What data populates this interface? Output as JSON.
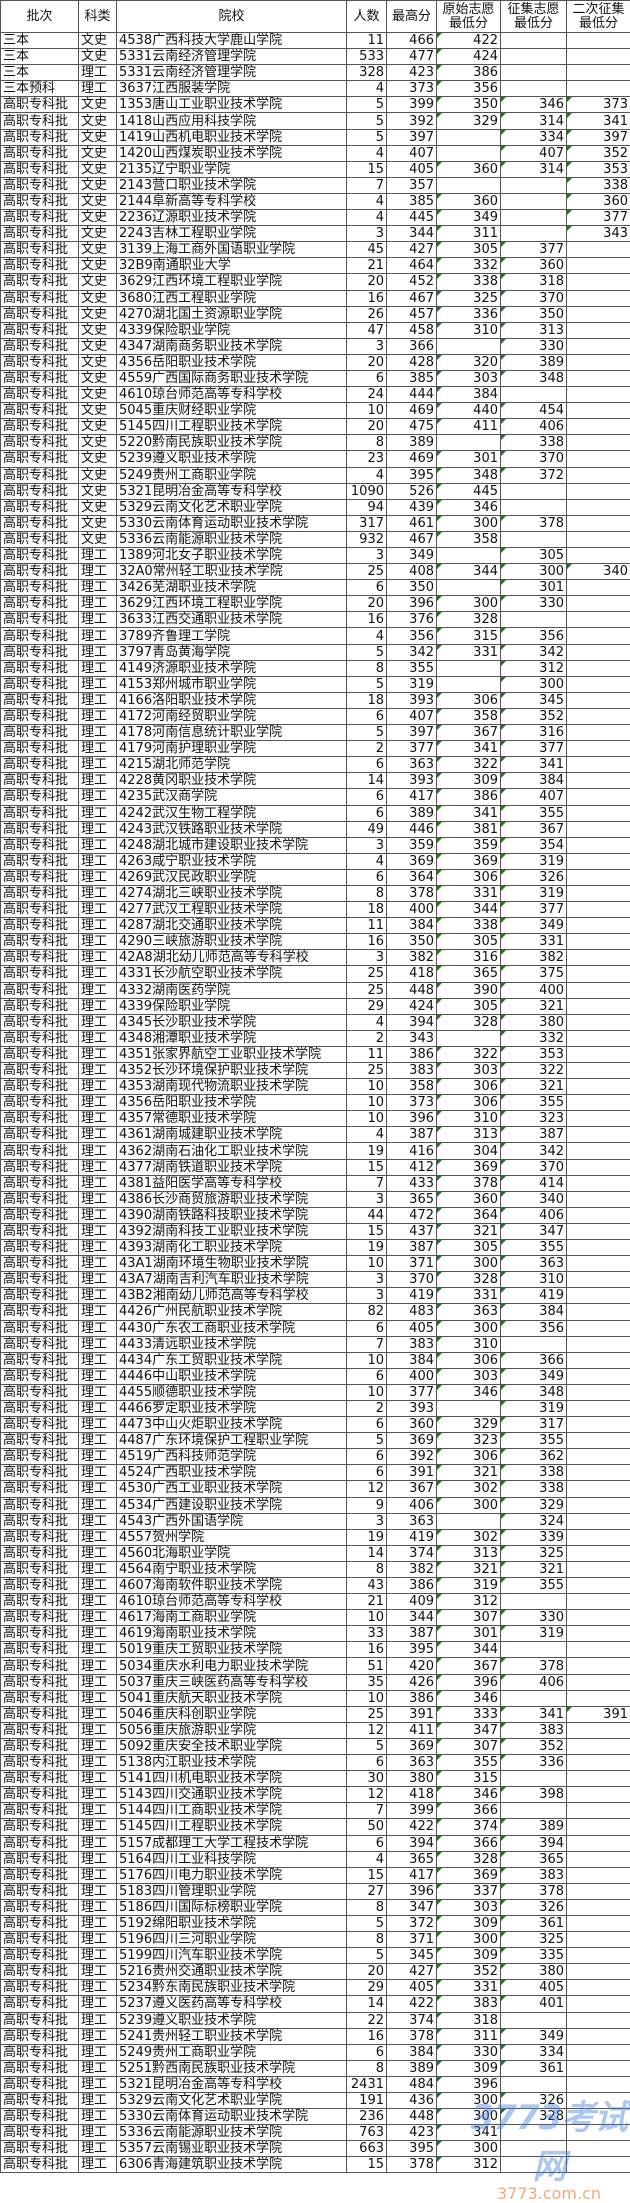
{
  "headers": [
    "批次",
    "科类",
    "院校",
    "人数",
    "最高分",
    "原始志愿\n最低分",
    "征集志愿\n最低分",
    "二次征集\n最低分"
  ],
  "header_lines": [
    [
      "批次"
    ],
    [
      "科类"
    ],
    [
      "院校"
    ],
    [
      "人数"
    ],
    [
      "最高分"
    ],
    [
      "原始志愿",
      "最低分"
    ],
    [
      "征集志愿",
      "最低分"
    ],
    [
      "二次征集",
      "最低分"
    ]
  ],
  "rows": [
    [
      "三本",
      "文史",
      "4538广西科技大学鹿山学院",
      "11",
      "466",
      "422",
      "",
      ""
    ],
    [
      "三本",
      "文史",
      "5331云南经济管理学院",
      "533",
      "477",
      "424",
      "",
      ""
    ],
    [
      "三本",
      "理工",
      "5331云南经济管理学院",
      "328",
      "423",
      "386",
      "",
      ""
    ],
    [
      "三本预科",
      "理工",
      "3637江西服装学院",
      "4",
      "373",
      "356",
      "",
      ""
    ],
    [
      "高职专科批",
      "文史",
      "1353唐山工业职业技术学院",
      "5",
      "399",
      "350",
      "346",
      "373"
    ],
    [
      "高职专科批",
      "文史",
      "1418山西应用科技学院",
      "5",
      "392",
      "329",
      "314",
      "341"
    ],
    [
      "高职专科批",
      "文史",
      "1419山西机电职业技术学院",
      "5",
      "397",
      "",
      "334",
      "397"
    ],
    [
      "高职专科批",
      "文史",
      "1420山西煤炭职业技术学院",
      "4",
      "407",
      "",
      "407",
      "352"
    ],
    [
      "高职专科批",
      "文史",
      "2135辽宁职业学院",
      "15",
      "405",
      "360",
      "314",
      "353"
    ],
    [
      "高职专科批",
      "文史",
      "2143营口职业技术学院",
      "7",
      "357",
      "",
      "",
      "338"
    ],
    [
      "高职专科批",
      "文史",
      "2144阜新高等专科学校",
      "4",
      "385",
      "360",
      "",
      "360"
    ],
    [
      "高职专科批",
      "文史",
      "2236辽源职业技术学院",
      "4",
      "445",
      "349",
      "",
      "377"
    ],
    [
      "高职专科批",
      "文史",
      "2243吉林工程职业学院",
      "3",
      "344",
      "311",
      "",
      "343"
    ],
    [
      "高职专科批",
      "文史",
      "3139上海工商外国语职业学院",
      "45",
      "427",
      "305",
      "377",
      ""
    ],
    [
      "高职专科批",
      "文史",
      "32B9南通职业大学",
      "21",
      "464",
      "332",
      "360",
      ""
    ],
    [
      "高职专科批",
      "文史",
      "3629江西环境工程职业学院",
      "20",
      "452",
      "338",
      "318",
      ""
    ],
    [
      "高职专科批",
      "文史",
      "3680江西工程职业学院",
      "16",
      "467",
      "325",
      "370",
      ""
    ],
    [
      "高职专科批",
      "文史",
      "4270湖北国土资源职业学院",
      "26",
      "457",
      "336",
      "350",
      ""
    ],
    [
      "高职专科批",
      "文史",
      "4339保险职业学院",
      "47",
      "458",
      "310",
      "313",
      ""
    ],
    [
      "高职专科批",
      "文史",
      "4347湖南商务职业技术学院",
      "3",
      "366",
      "",
      "330",
      ""
    ],
    [
      "高职专科批",
      "文史",
      "4356岳阳职业技术学院",
      "20",
      "428",
      "320",
      "389",
      ""
    ],
    [
      "高职专科批",
      "文史",
      "4559广西国际商务职业技术学院",
      "6",
      "385",
      "303",
      "348",
      ""
    ],
    [
      "高职专科批",
      "文史",
      "4610琼台师范高等专科学校",
      "24",
      "444",
      "384",
      "",
      ""
    ],
    [
      "高职专科批",
      "文史",
      "5045重庆财经职业学院",
      "10",
      "469",
      "440",
      "454",
      ""
    ],
    [
      "高职专科批",
      "文史",
      "5145四川工程职业技术学院",
      "20",
      "475",
      "411",
      "406",
      ""
    ],
    [
      "高职专科批",
      "文史",
      "5220黔南民族职业技术学院",
      "8",
      "389",
      "",
      "338",
      ""
    ],
    [
      "高职专科批",
      "文史",
      "5239遵义职业技术学院",
      "23",
      "469",
      "301",
      "370",
      ""
    ],
    [
      "高职专科批",
      "文史",
      "5249贵州工商职业学院",
      "4",
      "395",
      "348",
      "372",
      ""
    ],
    [
      "高职专科批",
      "文史",
      "5321昆明冶金高等专科学校",
      "1090",
      "526",
      "445",
      "",
      ""
    ],
    [
      "高职专科批",
      "文史",
      "5329云南文化艺术职业学院",
      "94",
      "439",
      "346",
      "",
      ""
    ],
    [
      "高职专科批",
      "文史",
      "5330云南体育运动职业技术学院",
      "317",
      "461",
      "300",
      "378",
      ""
    ],
    [
      "高职专科批",
      "文史",
      "5336云南能源职业技术学院",
      "932",
      "467",
      "358",
      "",
      ""
    ],
    [
      "高职专科批",
      "理工",
      "1389河北女子职业技术学院",
      "3",
      "349",
      "",
      "305",
      ""
    ],
    [
      "高职专科批",
      "理工",
      "32A0常州轻工职业技术学院",
      "25",
      "408",
      "344",
      "300",
      "340"
    ],
    [
      "高职专科批",
      "理工",
      "3426芜湖职业技术学院",
      "6",
      "350",
      "",
      "301",
      ""
    ],
    [
      "高职专科批",
      "理工",
      "3629江西环境工程职业学院",
      "20",
      "396",
      "300",
      "330",
      ""
    ],
    [
      "高职专科批",
      "理工",
      "3633江西交通职业技术学院",
      "16",
      "376",
      "328",
      "",
      ""
    ],
    [
      "高职专科批",
      "理工",
      "3789齐鲁理工学院",
      "4",
      "356",
      "315",
      "356",
      ""
    ],
    [
      "高职专科批",
      "理工",
      "3797青岛黄海学院",
      "5",
      "342",
      "331",
      "342",
      ""
    ],
    [
      "高职专科批",
      "理工",
      "4149济源职业技术学院",
      "8",
      "355",
      "",
      "312",
      ""
    ],
    [
      "高职专科批",
      "理工",
      "4153郑州城市职业学院",
      "5",
      "319",
      "",
      "300",
      ""
    ],
    [
      "高职专科批",
      "理工",
      "4166洛阳职业技术学院",
      "18",
      "393",
      "306",
      "345",
      ""
    ],
    [
      "高职专科批",
      "理工",
      "4172河南经贸职业学院",
      "6",
      "407",
      "358",
      "352",
      ""
    ],
    [
      "高职专科批",
      "理工",
      "4178河南信息统计职业学院",
      "5",
      "397",
      "367",
      "316",
      ""
    ],
    [
      "高职专科批",
      "理工",
      "4179河南护理职业学院",
      "2",
      "377",
      "341",
      "377",
      ""
    ],
    [
      "高职专科批",
      "理工",
      "4215湖北师范学院",
      "6",
      "363",
      "322",
      "341",
      ""
    ],
    [
      "高职专科批",
      "理工",
      "4228黄冈职业技术学院",
      "14",
      "393",
      "309",
      "384",
      ""
    ],
    [
      "高职专科批",
      "理工",
      "4235武汉商学院",
      "6",
      "417",
      "386",
      "407",
      ""
    ],
    [
      "高职专科批",
      "理工",
      "4242武汉生物工程学院",
      "6",
      "389",
      "341",
      "355",
      ""
    ],
    [
      "高职专科批",
      "理工",
      "4243武汉铁路职业技术学院",
      "49",
      "446",
      "381",
      "367",
      ""
    ],
    [
      "高职专科批",
      "理工",
      "4248湖北城市建设职业技术学院",
      "3",
      "359",
      "359",
      "354",
      ""
    ],
    [
      "高职专科批",
      "理工",
      "4263咸宁职业技术学院",
      "4",
      "369",
      "369",
      "319",
      ""
    ],
    [
      "高职专科批",
      "理工",
      "4269武汉民政职业学院",
      "6",
      "364",
      "306",
      "326",
      ""
    ],
    [
      "高职专科批",
      "理工",
      "4274湖北三峡职业技术学院",
      "8",
      "378",
      "331",
      "319",
      ""
    ],
    [
      "高职专科批",
      "理工",
      "4277武汉工程职业技术学院",
      "18",
      "400",
      "344",
      "377",
      ""
    ],
    [
      "高职专科批",
      "理工",
      "4287湖北交通职业技术学院",
      "11",
      "384",
      "338",
      "349",
      ""
    ],
    [
      "高职专科批",
      "理工",
      "4290三峡旅游职业技术学院",
      "16",
      "350",
      "305",
      "331",
      ""
    ],
    [
      "高职专科批",
      "理工",
      "42A8湖北幼儿师范高等专科学校",
      "3",
      "382",
      "316",
      "382",
      ""
    ],
    [
      "高职专科批",
      "理工",
      "4331长沙航空职业技术学院",
      "25",
      "418",
      "365",
      "375",
      ""
    ],
    [
      "高职专科批",
      "理工",
      "4332湖南医药学院",
      "25",
      "448",
      "390",
      "400",
      ""
    ],
    [
      "高职专科批",
      "理工",
      "4339保险职业学院",
      "29",
      "424",
      "305",
      "321",
      ""
    ],
    [
      "高职专科批",
      "理工",
      "4345长沙职业技术学院",
      "4",
      "394",
      "328",
      "380",
      ""
    ],
    [
      "高职专科批",
      "理工",
      "4348湘潭职业技术学院",
      "2",
      "343",
      "",
      "332",
      ""
    ],
    [
      "高职专科批",
      "理工",
      "4351张家界航空工业职业技术学院",
      "11",
      "386",
      "322",
      "353",
      ""
    ],
    [
      "高职专科批",
      "理工",
      "4352长沙环境保护职业技术学院",
      "25",
      "383",
      "303",
      "322",
      ""
    ],
    [
      "高职专科批",
      "理工",
      "4353湖南现代物流职业技术学院",
      "10",
      "358",
      "306",
      "321",
      ""
    ],
    [
      "高职专科批",
      "理工",
      "4356岳阳职业技术学院",
      "10",
      "373",
      "306",
      "355",
      ""
    ],
    [
      "高职专科批",
      "理工",
      "4357常德职业技术学院",
      "10",
      "396",
      "310",
      "323",
      ""
    ],
    [
      "高职专科批",
      "理工",
      "4361湖南城建职业技术学院",
      "4",
      "387",
      "313",
      "387",
      ""
    ],
    [
      "高职专科批",
      "理工",
      "4362湖南石油化工职业技术学院",
      "19",
      "416",
      "304",
      "342",
      ""
    ],
    [
      "高职专科批",
      "理工",
      "4377湖南铁道职业技术学院",
      "15",
      "412",
      "369",
      "370",
      ""
    ],
    [
      "高职专科批",
      "理工",
      "4381益阳医学高等专科学校",
      "7",
      "433",
      "378",
      "414",
      ""
    ],
    [
      "高职专科批",
      "理工",
      "4386长沙商贸旅游职业技术学院",
      "3",
      "365",
      "360",
      "340",
      ""
    ],
    [
      "高职专科批",
      "理工",
      "4390湖南铁路科技职业技术学院",
      "44",
      "472",
      "364",
      "406",
      ""
    ],
    [
      "高职专科批",
      "理工",
      "4392湖南科技工业职业技术学院",
      "15",
      "437",
      "321",
      "347",
      ""
    ],
    [
      "高职专科批",
      "理工",
      "4393湖南化工职业技术学院",
      "19",
      "387",
      "305",
      "355",
      ""
    ],
    [
      "高职专科批",
      "理工",
      "43A1湖南环境生物职业技术学院",
      "10",
      "371",
      "300",
      "363",
      ""
    ],
    [
      "高职专科批",
      "理工",
      "43A7湖南吉利汽车职业技术学院",
      "3",
      "370",
      "328",
      "310",
      ""
    ],
    [
      "高职专科批",
      "理工",
      "43B2湘南幼儿师范高等专科学校",
      "3",
      "419",
      "331",
      "419",
      ""
    ],
    [
      "高职专科批",
      "理工",
      "4426广州民航职业技术学院",
      "82",
      "483",
      "363",
      "384",
      ""
    ],
    [
      "高职专科批",
      "理工",
      "4430广东农工商职业技术学院",
      "6",
      "405",
      "300",
      "356",
      ""
    ],
    [
      "高职专科批",
      "理工",
      "4433清远职业技术学院",
      "7",
      "383",
      "310",
      "",
      ""
    ],
    [
      "高职专科批",
      "理工",
      "4434广东工贸职业技术学院",
      "10",
      "384",
      "306",
      "366",
      ""
    ],
    [
      "高职专科批",
      "理工",
      "4446中山职业技术学院",
      "6",
      "400",
      "303",
      "349",
      ""
    ],
    [
      "高职专科批",
      "理工",
      "4455顺德职业技术学院",
      "10",
      "377",
      "346",
      "348",
      ""
    ],
    [
      "高职专科批",
      "理工",
      "4466罗定职业技术学院",
      "2",
      "393",
      "",
      "319",
      ""
    ],
    [
      "高职专科批",
      "理工",
      "4473中山火炬职业技术学院",
      "6",
      "360",
      "329",
      "317",
      ""
    ],
    [
      "高职专科批",
      "理工",
      "4487广东环境保护工程职业学院",
      "5",
      "369",
      "323",
      "355",
      ""
    ],
    [
      "高职专科批",
      "理工",
      "4519广西科技师范学院",
      "6",
      "392",
      "306",
      "362",
      ""
    ],
    [
      "高职专科批",
      "理工",
      "4524广西职业技术学院",
      "6",
      "391",
      "321",
      "338",
      ""
    ],
    [
      "高职专科批",
      "理工",
      "4530广西工业职业技术学院",
      "12",
      "367",
      "302",
      "338",
      ""
    ],
    [
      "高职专科批",
      "理工",
      "4534广西建设职业技术学院",
      "9",
      "406",
      "300",
      "329",
      ""
    ],
    [
      "高职专科批",
      "理工",
      "4543广西外国语学院",
      "3",
      "363",
      "",
      "324",
      ""
    ],
    [
      "高职专科批",
      "理工",
      "4557贺州学院",
      "19",
      "419",
      "302",
      "339",
      ""
    ],
    [
      "高职专科批",
      "理工",
      "4560北海职业学院",
      "14",
      "374",
      "313",
      "325",
      ""
    ],
    [
      "高职专科批",
      "理工",
      "4564南宁职业技术学院",
      "8",
      "382",
      "321",
      "321",
      ""
    ],
    [
      "高职专科批",
      "理工",
      "4607海南软件职业技术学院",
      "43",
      "386",
      "319",
      "355",
      ""
    ],
    [
      "高职专科批",
      "理工",
      "4610琼台师范高等专科学校",
      "21",
      "409",
      "312",
      "",
      ""
    ],
    [
      "高职专科批",
      "理工",
      "4617海南工商职业学院",
      "10",
      "344",
      "307",
      "330",
      ""
    ],
    [
      "高职专科批",
      "理工",
      "4619海南职业技术学院",
      "33",
      "387",
      "301",
      "319",
      ""
    ],
    [
      "高职专科批",
      "理工",
      "5019重庆工贸职业技术学院",
      "16",
      "395",
      "344",
      "",
      ""
    ],
    [
      "高职专科批",
      "理工",
      "5034重庆水利电力职业技术学院",
      "51",
      "420",
      "367",
      "378",
      ""
    ],
    [
      "高职专科批",
      "理工",
      "5037重庆三峡医药高等专科学校",
      "35",
      "426",
      "396",
      "406",
      ""
    ],
    [
      "高职专科批",
      "理工",
      "5041重庆航天职业技术学院",
      "10",
      "386",
      "346",
      "",
      ""
    ],
    [
      "高职专科批",
      "理工",
      "5046重庆科创职业学院",
      "25",
      "391",
      "333",
      "341",
      "391"
    ],
    [
      "高职专科批",
      "理工",
      "5056重庆旅游职业学院",
      "12",
      "411",
      "347",
      "383",
      ""
    ],
    [
      "高职专科批",
      "理工",
      "5092重庆安全技术职业学院",
      "5",
      "369",
      "307",
      "352",
      ""
    ],
    [
      "高职专科批",
      "理工",
      "5138内江职业技术学院",
      "6",
      "363",
      "355",
      "336",
      ""
    ],
    [
      "高职专科批",
      "理工",
      "5141四川机电职业技术学院",
      "30",
      "380",
      "315",
      "",
      ""
    ],
    [
      "高职专科批",
      "理工",
      "5143四川交通职业技术学院",
      "12",
      "418",
      "346",
      "398",
      ""
    ],
    [
      "高职专科批",
      "理工",
      "5144四川工商职业技术学院",
      "7",
      "399",
      "366",
      "",
      ""
    ],
    [
      "高职专科批",
      "理工",
      "5145四川工程职业技术学院",
      "50",
      "422",
      "374",
      "389",
      ""
    ],
    [
      "高职专科批",
      "理工",
      "5157成都理工大学工程技术学院",
      "6",
      "394",
      "366",
      "394",
      ""
    ],
    [
      "高职专科批",
      "理工",
      "5164四川工业科技学院",
      "4",
      "365",
      "328",
      "365",
      ""
    ],
    [
      "高职专科批",
      "理工",
      "5176四川电力职业技术学院",
      "15",
      "417",
      "369",
      "383",
      ""
    ],
    [
      "高职专科批",
      "理工",
      "5183四川管理职业学院",
      "27",
      "396",
      "337",
      "378",
      ""
    ],
    [
      "高职专科批",
      "理工",
      "5186四川国际标榜职业学院",
      "8",
      "347",
      "303",
      "326",
      ""
    ],
    [
      "高职专科批",
      "理工",
      "5192绵阳职业技术学院",
      "5",
      "372",
      "309",
      "361",
      ""
    ],
    [
      "高职专科批",
      "理工",
      "5196四川三河职业学院",
      "8",
      "371",
      "300",
      "325",
      ""
    ],
    [
      "高职专科批",
      "理工",
      "5199四川汽车职业技术学院",
      "5",
      "345",
      "309",
      "335",
      ""
    ],
    [
      "高职专科批",
      "理工",
      "5216贵州交通职业技术学院",
      "20",
      "427",
      "352",
      "380",
      ""
    ],
    [
      "高职专科批",
      "理工",
      "5234黔东南民族职业技术学院",
      "29",
      "405",
      "331",
      "405",
      ""
    ],
    [
      "高职专科批",
      "理工",
      "5237遵义医药高等专科学校",
      "14",
      "422",
      "383",
      "401",
      ""
    ],
    [
      "高职专科批",
      "理工",
      "5239遵义职业技术学院",
      "22",
      "374",
      "318",
      "",
      ""
    ],
    [
      "高职专科批",
      "理工",
      "5241贵州轻工职业技术学院",
      "16",
      "378",
      "311",
      "349",
      ""
    ],
    [
      "高职专科批",
      "理工",
      "5249贵州工商职业学院",
      "6",
      "384",
      "330",
      "334",
      ""
    ],
    [
      "高职专科批",
      "理工",
      "5251黔西南民族职业技术学院",
      "8",
      "389",
      "309",
      "361",
      ""
    ],
    [
      "高职专科批",
      "理工",
      "5321昆明冶金高等专科学校",
      "2431",
      "484",
      "396",
      "",
      ""
    ],
    [
      "高职专科批",
      "理工",
      "5329云南文化艺术职业学院",
      "191",
      "436",
      "300",
      "326",
      ""
    ],
    [
      "高职专科批",
      "理工",
      "5330云南体育运动职业技术学院",
      "236",
      "448",
      "300",
      "328",
      ""
    ],
    [
      "高职专科批",
      "理工",
      "5336云南能源职业技术学院",
      "763",
      "423",
      "341",
      "",
      ""
    ],
    [
      "高职专科批",
      "理工",
      "5357云南锡业职业技术学院",
      "663",
      "395",
      "300",
      "",
      ""
    ],
    [
      "高职专科批",
      "理工",
      "6306青海建筑职业技术学院",
      "15",
      "378",
      "312",
      "",
      ""
    ]
  ],
  "colors": {
    "border": "#555555",
    "text_flag": "#1a7a1a"
  },
  "watermark": {
    "line1": "3773考试网",
    "line2": "3773.com.cn"
  }
}
